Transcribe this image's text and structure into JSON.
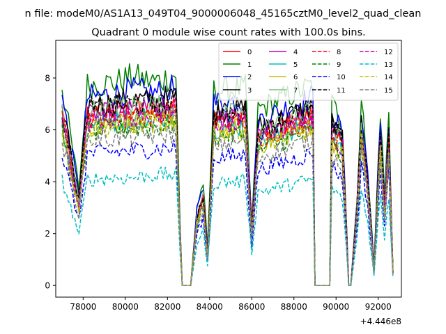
{
  "chart_data": {
    "type": "line",
    "suptitle": "n file: modeM0/AS1A13_049T04_9000006048_45165cztM0_level2_quad_clean",
    "title": "Quadrant 0 module wise count rates with 100.0s bins.",
    "xlabel": "",
    "ylabel": "",
    "offset_label": "+4.446e8",
    "xlim": [
      76700,
      93100
    ],
    "ylim": [
      -0.45,
      9.45
    ],
    "xticks": [
      78000,
      80000,
      82000,
      84000,
      86000,
      88000,
      90000,
      92000
    ],
    "xtick_labels": [
      "78000",
      "80000",
      "82000",
      "84000",
      "86000",
      "88000",
      "90000",
      "92000"
    ],
    "yticks": [
      0,
      2,
      4,
      6,
      8
    ],
    "ytick_labels": [
      "0",
      "2",
      "4",
      "6",
      "8"
    ],
    "grid": false,
    "legend_position": "top-right",
    "legend_columns": 4,
    "x_start": 77000,
    "x_step": 100,
    "envelope": {
      "note_segments": "piecewise-linear profile of typical rates (segments of [x_from, x_to, y_from, y_to])",
      "segments": [
        [
          77000,
          77800,
          6.6,
          3.2
        ],
        [
          77800,
          78200,
          3.2,
          6.6
        ],
        [
          78200,
          82400,
          6.6,
          6.9
        ],
        [
          82400,
          82600,
          6.9,
          2.0
        ],
        [
          82600,
          82700,
          2.0,
          0.0
        ],
        [
          82700,
          83100,
          0.0,
          0.0
        ],
        [
          83100,
          83400,
          0.0,
          2.6
        ],
        [
          83400,
          83700,
          2.6,
          3.4
        ],
        [
          83700,
          83900,
          3.4,
          1.2
        ],
        [
          83900,
          84200,
          1.2,
          6.4
        ],
        [
          84200,
          85700,
          6.4,
          6.5
        ],
        [
          85700,
          86000,
          6.5,
          2.0
        ],
        [
          86000,
          86300,
          2.0,
          5.8
        ],
        [
          86300,
          88900,
          5.8,
          6.6
        ],
        [
          88900,
          89000,
          6.6,
          0.0
        ],
        [
          89000,
          89700,
          0.0,
          0.0
        ],
        [
          89700,
          89800,
          0.0,
          6.0
        ],
        [
          89800,
          90300,
          6.0,
          5.4
        ],
        [
          90300,
          90500,
          5.4,
          2.0
        ],
        [
          90500,
          90600,
          2.0,
          0.0
        ],
        [
          90600,
          90700,
          0.0,
          0.0
        ],
        [
          90700,
          91000,
          0.0,
          3.0
        ],
        [
          91000,
          91200,
          3.0,
          6.0
        ],
        [
          91200,
          91500,
          6.0,
          4.0
        ],
        [
          91500,
          91800,
          4.0,
          0.6
        ],
        [
          91800,
          92100,
          0.6,
          5.8
        ],
        [
          92100,
          92300,
          5.8,
          3.0
        ],
        [
          92300,
          92500,
          3.0,
          5.6
        ],
        [
          92500,
          92700,
          5.6,
          0.5
        ]
      ]
    },
    "series": [
      {
        "name": "0",
        "color": "#ff0000",
        "dash": "solid",
        "scale": 1.0
      },
      {
        "name": "1",
        "color": "#008000",
        "dash": "solid",
        "scale": 1.17
      },
      {
        "name": "2",
        "color": "#0000ff",
        "dash": "solid",
        "scale": 1.1
      },
      {
        "name": "3",
        "color": "#000000",
        "dash": "solid",
        "scale": 1.05
      },
      {
        "name": "4",
        "color": "#bf00bf",
        "dash": "solid",
        "scale": 0.99
      },
      {
        "name": "5",
        "color": "#00bfbf",
        "dash": "solid",
        "scale": 0.95
      },
      {
        "name": "6",
        "color": "#bfbf00",
        "dash": "solid",
        "scale": 0.93
      },
      {
        "name": "7",
        "color": "#7fbf7f",
        "dash": "solid",
        "scale": 1.02
      },
      {
        "name": "8",
        "color": "#ff0000",
        "dash": "dashed",
        "scale": 0.98
      },
      {
        "name": "9",
        "color": "#008000",
        "dash": "dashed",
        "scale": 0.9
      },
      {
        "name": "10",
        "color": "#0000ff",
        "dash": "dashed",
        "scale": 0.77
      },
      {
        "name": "11",
        "color": "#000000",
        "dash": "dashed",
        "scale": 1.03
      },
      {
        "name": "12",
        "color": "#bf00bf",
        "dash": "dashed",
        "scale": 0.96
      },
      {
        "name": "13",
        "color": "#00bfbf",
        "dash": "dashed",
        "scale": 0.62
      },
      {
        "name": "14",
        "color": "#bfbf00",
        "dash": "dashed",
        "scale": 0.92
      },
      {
        "name": "15",
        "color": "#808080",
        "dash": "dashed",
        "scale": 0.85
      }
    ]
  }
}
